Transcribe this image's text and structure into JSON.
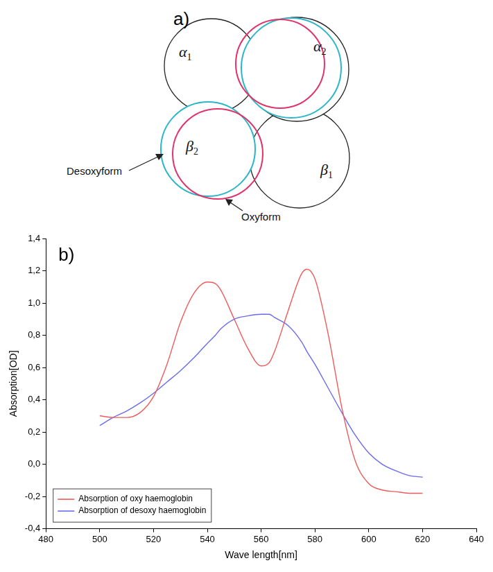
{
  "diagram": {
    "panel": "a)",
    "subunits": [
      {
        "symbol": "α",
        "subscript": "1"
      },
      {
        "symbol": "α",
        "subscript": "2"
      },
      {
        "symbol": "β",
        "subscript": "2"
      },
      {
        "symbol": "β",
        "subscript": "1"
      }
    ],
    "labels": {
      "desoxy": "Desoxyform",
      "oxy": "Oxyform"
    }
  },
  "chart_data": {
    "type": "line",
    "annotations": [
      "b)"
    ],
    "x_label": "Wave length[nm]",
    "y_label": "Absorption[OD]",
    "x": [
      500,
      505,
      510,
      515,
      520,
      525,
      530,
      535,
      540,
      543,
      545,
      550,
      555,
      560,
      563,
      565,
      570,
      575,
      577,
      580,
      585,
      590,
      595,
      600,
      605,
      610,
      615,
      620
    ],
    "series": [
      {
        "name": "Absorption of oxy haemoglobin",
        "color": "#f05a5a",
        "values": [
          0.3,
          0.29,
          0.29,
          0.32,
          0.42,
          0.62,
          0.88,
          1.06,
          1.13,
          1.12,
          1.08,
          0.9,
          0.72,
          0.61,
          0.63,
          0.7,
          0.95,
          1.18,
          1.21,
          1.15,
          0.8,
          0.35,
          0.02,
          -0.12,
          -0.16,
          -0.17,
          -0.18,
          -0.18
        ]
      },
      {
        "name": "Absorption of desoxy haemoglobin",
        "color": "#6a6af0",
        "values": [
          0.24,
          0.29,
          0.33,
          0.38,
          0.44,
          0.51,
          0.58,
          0.66,
          0.75,
          0.8,
          0.84,
          0.9,
          0.92,
          0.93,
          0.93,
          0.91,
          0.86,
          0.76,
          0.7,
          0.62,
          0.47,
          0.32,
          0.18,
          0.07,
          0.0,
          -0.04,
          -0.07,
          -0.08
        ]
      }
    ],
    "xlim": [
      480,
      640
    ],
    "xticks": [
      480,
      500,
      520,
      540,
      560,
      580,
      600,
      620,
      640
    ],
    "ylim": [
      -0.4,
      1.4
    ],
    "yticks": [
      {
        "value": -0.4,
        "label": "-0,4"
      },
      {
        "value": -0.2,
        "label": "-0,2"
      },
      {
        "value": 0,
        "label": "0,0"
      },
      {
        "value": 0.2,
        "label": "0,2"
      },
      {
        "value": 0.4,
        "label": "0,4"
      },
      {
        "value": 0.6,
        "label": "0,6"
      },
      {
        "value": 0.8,
        "label": "0,8"
      },
      {
        "value": 1.0,
        "label": "1,0"
      },
      {
        "value": 1.2,
        "label": "1,2"
      },
      {
        "value": 1.4,
        "label": "1,4"
      }
    ],
    "grid": false,
    "legend": "lower left"
  }
}
